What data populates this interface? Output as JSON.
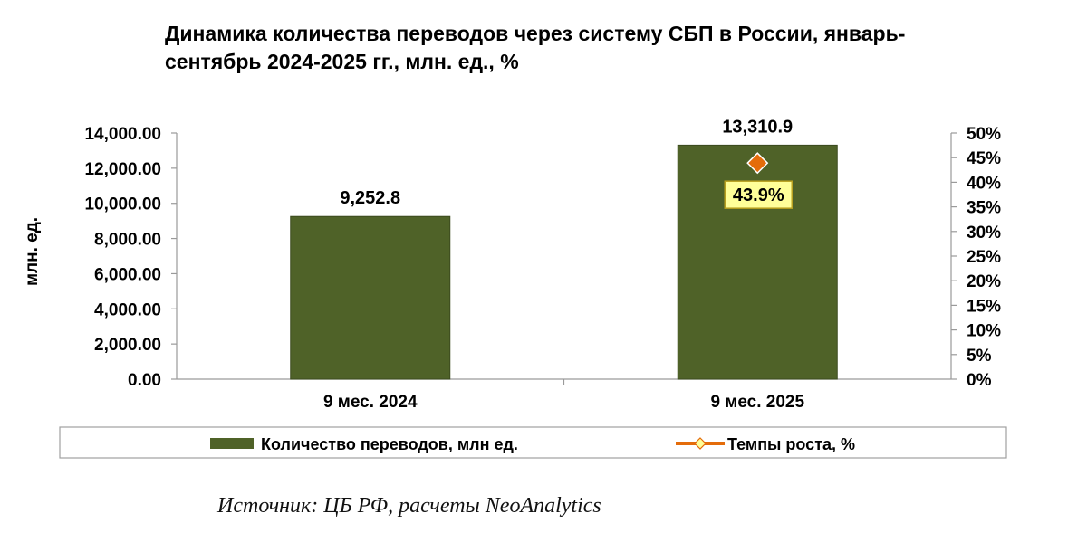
{
  "chart_data": {
    "type": "bar",
    "title_lines": [
      "Динамика количества переводов через систему СБП в России,  январь-",
      "сентябрь 2024-2025 гг., млн. ед., %"
    ],
    "categories": [
      "9 мес. 2024",
      "9 мес. 2025"
    ],
    "series": [
      {
        "name": "Количество переводов, млн ед.",
        "kind": "bar",
        "axis": "left",
        "color": "#4f6228",
        "values": [
          9252.8,
          13310.9
        ],
        "labels": [
          "9,252.8",
          "13,310.9"
        ]
      },
      {
        "name": "Темпы роста, %",
        "kind": "marker",
        "axis": "right",
        "color": "#e46c0a",
        "values": [
          null,
          43.9
        ],
        "labels": [
          "",
          "43.9%"
        ]
      }
    ],
    "ylabel": "млн. ед.",
    "y_left": {
      "min": 0,
      "max": 14000,
      "ticks": [
        0,
        2000,
        4000,
        6000,
        8000,
        10000,
        12000,
        14000
      ],
      "tick_labels": [
        "0.00",
        "2,000.00",
        "4,000.00",
        "6,000.00",
        "8,000.00",
        "10,000.00",
        "12,000.00",
        "14,000.00"
      ]
    },
    "y_right": {
      "min": 0,
      "max": 50,
      "ticks": [
        0,
        5,
        10,
        15,
        20,
        25,
        30,
        35,
        40,
        45,
        50
      ],
      "tick_labels": [
        "0%",
        "5%",
        "10%",
        "15%",
        "20%",
        "25%",
        "30%",
        "35%",
        "40%",
        "45%",
        "50%"
      ]
    },
    "legend_position": "bottom",
    "grid": false,
    "label_box_color": "#ffff99"
  },
  "source": "Источник: ЦБ РФ, расчеты NeoAnalytics"
}
